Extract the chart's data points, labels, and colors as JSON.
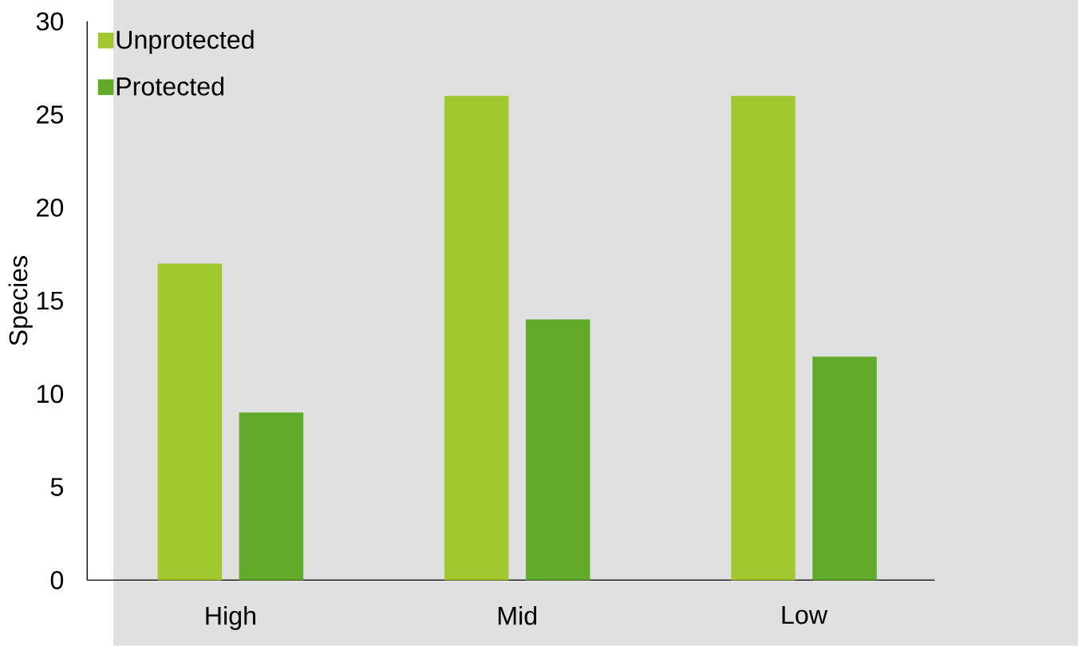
{
  "chart_data": {
    "type": "bar",
    "ylabel": "Species",
    "categories": [
      "High",
      "Mid",
      "Low"
    ],
    "series": [
      {
        "name": "Unprotected",
        "color": "#a2c830",
        "values": [
          17,
          26,
          26
        ]
      },
      {
        "name": "Protected",
        "color": "#62aa2a",
        "values": [
          9,
          14,
          12
        ]
      }
    ],
    "ylim": [
      0,
      30
    ],
    "yticks": [
      0,
      5,
      10,
      15,
      20,
      25,
      30
    ],
    "legend": "top left"
  }
}
